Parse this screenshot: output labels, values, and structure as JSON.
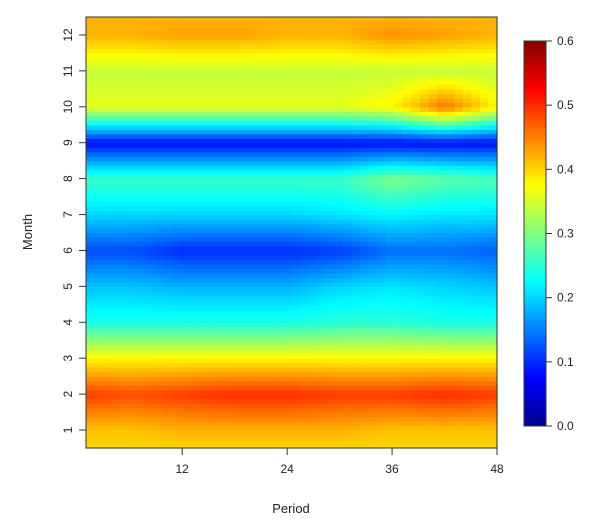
{
  "chart_data": {
    "type": "heatmap",
    "title": "",
    "xlabel": "Period",
    "ylabel": "Month",
    "x_ticks": [
      12,
      24,
      36,
      48
    ],
    "y_ticks": [
      1,
      2,
      3,
      4,
      5,
      6,
      7,
      8,
      9,
      10,
      11,
      12
    ],
    "xlim": [
      1,
      48
    ],
    "ylim": [
      0.5,
      12.5
    ],
    "x": [
      1,
      6,
      12,
      18,
      24,
      30,
      36,
      42,
      48
    ],
    "y": [
      0.5,
      1,
      2,
      3,
      4,
      5,
      6,
      7,
      8,
      9,
      10,
      11,
      12,
      12.5
    ],
    "z": [
      [
        0.4,
        0.4,
        0.4,
        0.4,
        0.4,
        0.4,
        0.4,
        0.4,
        0.4
      ],
      [
        0.41,
        0.41,
        0.42,
        0.42,
        0.42,
        0.42,
        0.41,
        0.41,
        0.41
      ],
      [
        0.49,
        0.48,
        0.49,
        0.5,
        0.5,
        0.49,
        0.49,
        0.5,
        0.49
      ],
      [
        0.38,
        0.38,
        0.38,
        0.38,
        0.38,
        0.38,
        0.38,
        0.38,
        0.38
      ],
      [
        0.24,
        0.24,
        0.24,
        0.24,
        0.24,
        0.25,
        0.25,
        0.24,
        0.24
      ],
      [
        0.19,
        0.19,
        0.18,
        0.18,
        0.18,
        0.2,
        0.21,
        0.2,
        0.19
      ],
      [
        0.12,
        0.12,
        0.1,
        0.1,
        0.1,
        0.11,
        0.14,
        0.14,
        0.13
      ],
      [
        0.2,
        0.2,
        0.2,
        0.2,
        0.2,
        0.21,
        0.22,
        0.21,
        0.21
      ],
      [
        0.26,
        0.26,
        0.26,
        0.26,
        0.26,
        0.26,
        0.3,
        0.28,
        0.27
      ],
      [
        0.08,
        0.08,
        0.08,
        0.08,
        0.08,
        0.08,
        0.08,
        0.08,
        0.08
      ],
      [
        0.36,
        0.36,
        0.36,
        0.36,
        0.36,
        0.36,
        0.38,
        0.46,
        0.38
      ],
      [
        0.34,
        0.34,
        0.34,
        0.34,
        0.34,
        0.34,
        0.34,
        0.34,
        0.34
      ],
      [
        0.42,
        0.42,
        0.43,
        0.43,
        0.42,
        0.42,
        0.44,
        0.43,
        0.42
      ],
      [
        0.42,
        0.42,
        0.42,
        0.42,
        0.42,
        0.42,
        0.42,
        0.42,
        0.42
      ]
    ],
    "zlim": [
      0.0,
      0.6
    ],
    "colorbar_ticks": [
      "0.0",
      "0.1",
      "0.2",
      "0.3",
      "0.4",
      "0.5",
      "0.6"
    ],
    "colorscale": [
      "#00008f",
      "#0000ff",
      "#0080ff",
      "#00ffff",
      "#80ff80",
      "#ffff00",
      "#ff8000",
      "#ff0000",
      "#800000"
    ],
    "grid": false,
    "legend": "colorbar-right"
  }
}
